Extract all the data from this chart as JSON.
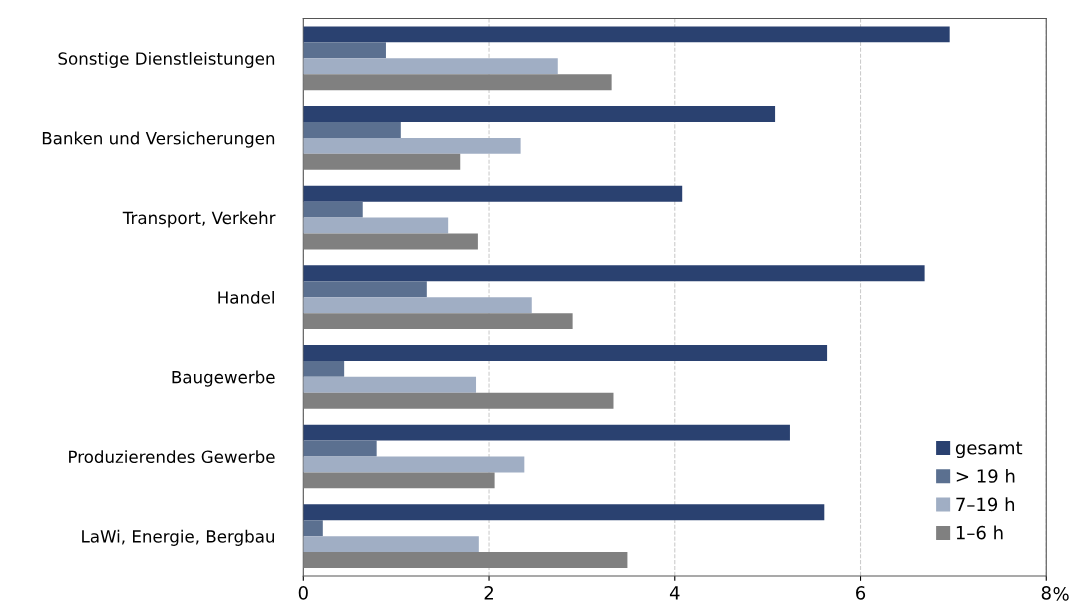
{
  "chart_data": {
    "type": "bar",
    "orientation": "horizontal",
    "categories": [
      "Sonstige Dienstleistungen",
      "Banken und Versicherungen",
      "Transport, Verkehr",
      "Handel",
      "Baugewerbe",
      "Produzierendes Gewerbe",
      "LaWi, Energie, Bergbau"
    ],
    "series": [
      {
        "name": "gesamt",
        "color": "#2a4170",
        "values": [
          6.96,
          5.08,
          4.08,
          6.69,
          5.64,
          5.24,
          5.61
        ]
      },
      {
        "name": "> 19 h",
        "color": "#5b7090",
        "values": [
          0.89,
          1.05,
          0.64,
          1.33,
          0.44,
          0.79,
          0.21
        ]
      },
      {
        "name": "7–19 h",
        "color": "#a0aec4",
        "values": [
          2.74,
          2.34,
          1.56,
          2.46,
          1.86,
          2.38,
          1.89
        ]
      },
      {
        "name": "1–6 h",
        "color": "#808080",
        "values": [
          3.32,
          1.69,
          1.88,
          2.9,
          3.34,
          2.06,
          3.49
        ]
      }
    ],
    "xlabel": "%",
    "xlim": [
      0,
      8
    ],
    "xticks": [
      0,
      2,
      4,
      6,
      8
    ],
    "grid": "x",
    "legend": "bottom right"
  }
}
